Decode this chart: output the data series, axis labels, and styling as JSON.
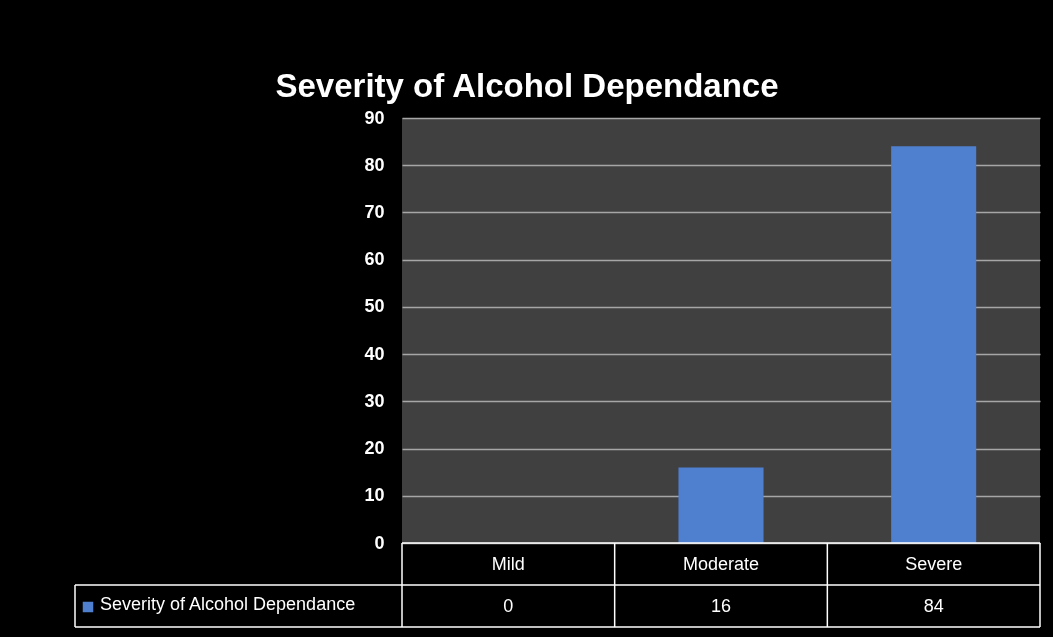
{
  "chart_data": {
    "type": "bar",
    "title": "Severity of Alcohol Dependance",
    "categories": [
      "Mild",
      "Moderate",
      "Severe"
    ],
    "series": [
      {
        "name": "Severity of Alcohol Dependance",
        "color": "#4f7fcf",
        "values": [
          0,
          16,
          84
        ]
      }
    ],
    "ylim": [
      0,
      90
    ],
    "yticks": [
      0,
      10,
      20,
      30,
      40,
      50,
      60,
      70,
      80,
      90
    ],
    "grid": "y",
    "legend": "bottom",
    "data_labels": true
  }
}
